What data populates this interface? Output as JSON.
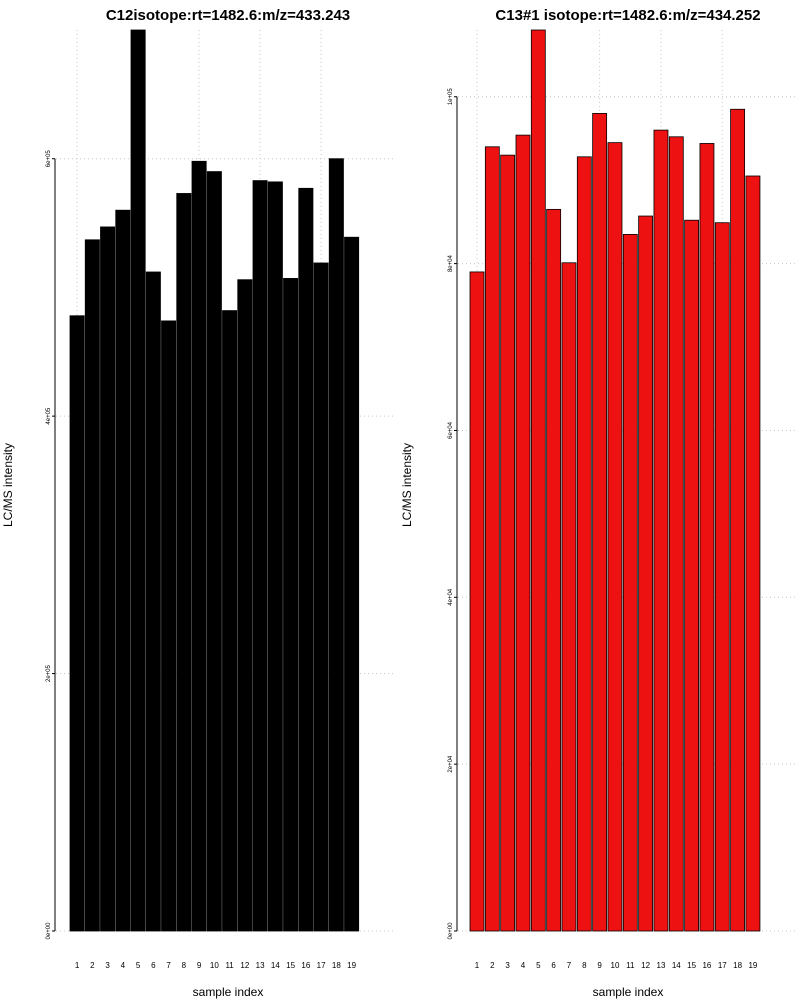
{
  "chart_data": [
    {
      "type": "bar",
      "title": "C12isotope:rt=1482.6:m/z=433.243",
      "xlabel": "sample index",
      "ylabel": "LC/MS intensity",
      "categories": [
        "1",
        "2",
        "3",
        "4",
        "5",
        "6",
        "7",
        "8",
        "9",
        "10",
        "11",
        "12",
        "13",
        "14",
        "15",
        "16",
        "17",
        "18",
        "19"
      ],
      "values": [
        478000,
        537000,
        547000,
        560000,
        700000,
        512000,
        474000,
        573000,
        598000,
        590000,
        482000,
        506000,
        583000,
        582000,
        507000,
        577000,
        519000,
        600000,
        539000
      ],
      "ylim": [
        0,
        700000
      ],
      "yticks": [
        0,
        200000,
        400000,
        600000
      ],
      "ytick_labels": [
        "0e+00",
        "2e+05",
        "4e+05",
        "6e+05"
      ],
      "bar_color": "#000000",
      "grid": true
    },
    {
      "type": "bar",
      "title": "C13#1 isotope:rt=1482.6:m/z=434.252",
      "xlabel": "sample index",
      "ylabel": "LC/MS intensity",
      "categories": [
        "1",
        "2",
        "3",
        "4",
        "5",
        "6",
        "7",
        "8",
        "9",
        "10",
        "11",
        "12",
        "13",
        "14",
        "15",
        "16",
        "17",
        "18",
        "19"
      ],
      "values": [
        79000,
        94000,
        93000,
        95400,
        108000,
        86500,
        80100,
        92800,
        98000,
        94500,
        83500,
        85700,
        96000,
        95200,
        85200,
        94400,
        84900,
        98500,
        90500
      ],
      "ylim": [
        0,
        108000
      ],
      "yticks": [
        0,
        20000,
        40000,
        60000,
        80000,
        100000
      ],
      "ytick_labels": [
        "0e+00",
        "2e+04",
        "4e+04",
        "6e+04",
        "8e+04",
        "1e+05"
      ],
      "bar_color": "#ee1111",
      "grid": true
    }
  ]
}
